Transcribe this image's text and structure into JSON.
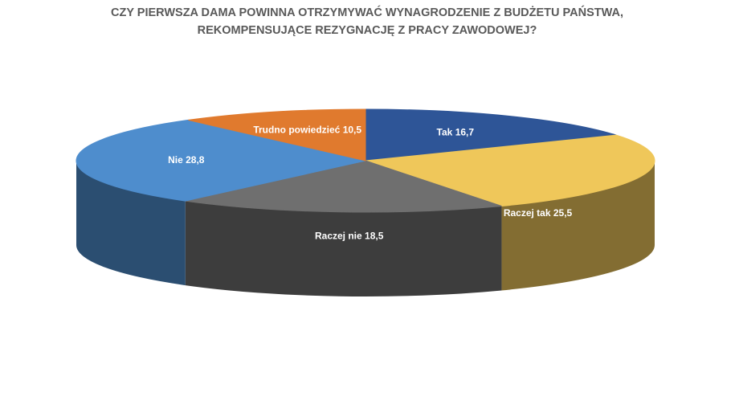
{
  "chart_data": {
    "type": "pie3d",
    "title": [
      "CZY PIERWSZA DAMA POWINNA OTRZYMYWAĆ WYNAGRODZENIE Z BUDŻETU PAŃSTWA,",
      "REKOMPENSUJĄCE REZYGNACJĘ Z PRACY ZAWODOWEJ?"
    ],
    "categories": [
      "Tak",
      "Raczej tak",
      "Raczej nie",
      "Nie",
      "Trudno powiedzieć"
    ],
    "values": [
      16.7,
      25.5,
      18.5,
      28.8,
      10.5
    ],
    "value_labels": [
      "16,7",
      "25,5",
      "18,5",
      "28,8",
      "10,5"
    ],
    "colors": [
      "#2e5597",
      "#efc75a",
      "#6f6f6f",
      "#4e8dcd",
      "#e07a2e"
    ]
  }
}
